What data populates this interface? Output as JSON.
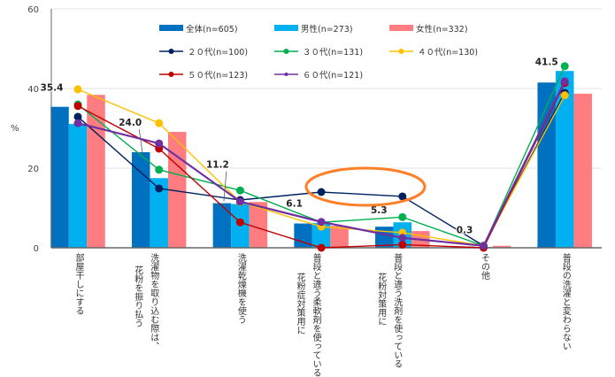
{
  "chart_data": {
    "type": "bar+line",
    "ylabel": "%",
    "ylim": [
      0,
      60
    ],
    "yticks": [
      0,
      20,
      40,
      60
    ],
    "grid": true,
    "legend_placement": "top-center",
    "categories": [
      [
        "部屋干しにする"
      ],
      [
        "洗濯物を取り込む際は、",
        "花粉を振り払う"
      ],
      [
        "洗濯乾燥機を使う"
      ],
      [
        "普段と違う柔軟剤を使っている",
        "花粉症対策用に"
      ],
      [
        "普段と違う洗剤を使っている",
        "花粉対策用に"
      ],
      [
        "その他"
      ],
      [
        "普段の洗濯と変わらない"
      ]
    ],
    "bar_series": [
      {
        "name": "全体(n=605)",
        "color": "#0070C0",
        "values": [
          35.4,
          24.0,
          11.2,
          6.1,
          5.3,
          0.3,
          41.5
        ]
      },
      {
        "name": "男性(n=273)",
        "color": "#00B0F0",
        "values": [
          31.1,
          17.5,
          11.0,
          6.2,
          6.4,
          0.2,
          44.4
        ]
      },
      {
        "name": "女性(n=332)",
        "color": "#FF7C80",
        "values": [
          38.4,
          29.1,
          11.5,
          5.5,
          4.2,
          0.5,
          38.7
        ]
      }
    ],
    "line_series": [
      {
        "name": "２０代(n=100)",
        "color": "#002060",
        "values": [
          32.9,
          14.9,
          12.0,
          14.0,
          12.9,
          0.5,
          38.9
        ]
      },
      {
        "name": "３０代(n=131)",
        "color": "#00B050",
        "values": [
          36.0,
          19.6,
          14.4,
          6.4,
          7.7,
          0.5,
          45.6
        ]
      },
      {
        "name": "４０代(n=130)",
        "color": "#FFC000",
        "values": [
          39.8,
          31.3,
          11.5,
          5.3,
          3.8,
          0.5,
          38.3
        ]
      },
      {
        "name": "５０代(n=123)",
        "color": "#C00000",
        "values": [
          35.6,
          24.9,
          6.4,
          0.0,
          0.8,
          0.0,
          41.4
        ]
      },
      {
        "name": "６０代(n=121)",
        "color": "#7030A0",
        "values": [
          31.3,
          26.2,
          11.6,
          6.5,
          2.5,
          0.5,
          41.8
        ]
      }
    ],
    "data_labels": [
      "35.4",
      "24.0",
      "11.2",
      "6.1",
      "5.3",
      "0.3",
      "41.5"
    ],
    "annotation": {
      "type": "ellipse",
      "color": "#FF7F27",
      "highlights": "２０代(n=100) at categories 4-5"
    }
  }
}
